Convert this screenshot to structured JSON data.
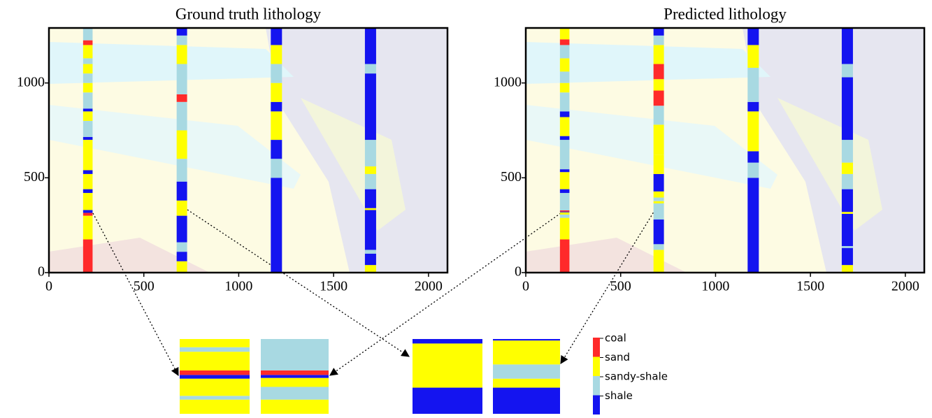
{
  "chart_data": [
    {
      "type": "wells",
      "title": "Ground truth lithology",
      "xlim": [
        0,
        2100
      ],
      "ylim": [
        0,
        1290
      ],
      "xticks": [
        0,
        500,
        1000,
        1500,
        2000
      ],
      "yticks": [
        0,
        500,
        1000
      ],
      "wells": [
        {
          "x": [
            180,
            230
          ],
          "segments": [
            [
              0,
              175,
              0
            ],
            [
              175,
              300,
              1
            ],
            [
              300,
              315,
              0
            ],
            [
              315,
              330,
              3
            ],
            [
              330,
              420,
              1
            ],
            [
              420,
              440,
              3
            ],
            [
              440,
              520,
              1
            ],
            [
              520,
              540,
              3
            ],
            [
              540,
              700,
              1
            ],
            [
              700,
              715,
              3
            ],
            [
              715,
              800,
              2
            ],
            [
              800,
              850,
              1
            ],
            [
              850,
              865,
              3
            ],
            [
              865,
              950,
              2
            ],
            [
              950,
              1000,
              1
            ],
            [
              1000,
              1050,
              2
            ],
            [
              1050,
              1100,
              1
            ],
            [
              1100,
              1130,
              2
            ],
            [
              1130,
              1200,
              1
            ],
            [
              1200,
              1225,
              0
            ],
            [
              1225,
              1290,
              2
            ]
          ]
        },
        {
          "x": [
            673,
            728
          ],
          "segments": [
            [
              0,
              60,
              1
            ],
            [
              60,
              110,
              3
            ],
            [
              110,
              160,
              2
            ],
            [
              160,
              300,
              3
            ],
            [
              300,
              380,
              1
            ],
            [
              380,
              480,
              3
            ],
            [
              480,
              600,
              2
            ],
            [
              600,
              750,
              1
            ],
            [
              750,
              900,
              2
            ],
            [
              900,
              940,
              0
            ],
            [
              940,
              1100,
              2
            ],
            [
              1100,
              1200,
              1
            ],
            [
              1200,
              1250,
              2
            ],
            [
              1250,
              1290,
              3
            ]
          ]
        },
        {
          "x": [
            1169,
            1228
          ],
          "segments": [
            [
              0,
              500,
              3
            ],
            [
              500,
              600,
              2
            ],
            [
              600,
              700,
              3
            ],
            [
              700,
              850,
              1
            ],
            [
              850,
              900,
              3
            ],
            [
              900,
              1000,
              1
            ],
            [
              1000,
              1100,
              2
            ],
            [
              1100,
              1200,
              1
            ],
            [
              1200,
              1290,
              3
            ]
          ]
        },
        {
          "x": [
            1665,
            1724
          ],
          "segments": [
            [
              0,
              40,
              1
            ],
            [
              40,
              100,
              3
            ],
            [
              100,
              120,
              2
            ],
            [
              120,
              330,
              3
            ],
            [
              330,
              340,
              1
            ],
            [
              340,
              440,
              3
            ],
            [
              440,
              520,
              2
            ],
            [
              520,
              560,
              1
            ],
            [
              560,
              700,
              2
            ],
            [
              700,
              1050,
              3
            ],
            [
              1050,
              1100,
              2
            ],
            [
              1100,
              1290,
              3
            ]
          ]
        }
      ]
    },
    {
      "type": "wells",
      "title": "Predicted lithology",
      "xlim": [
        0,
        2100
      ],
      "ylim": [
        0,
        1290
      ],
      "xticks": [
        0,
        500,
        1000,
        1500,
        2000
      ],
      "yticks": [
        0,
        500,
        1000
      ],
      "wells": [
        {
          "x": [
            180,
            230
          ],
          "segments": [
            [
              0,
              175,
              0
            ],
            [
              175,
              289,
              1
            ],
            [
              289,
              306,
              2
            ],
            [
              306,
              318,
              1
            ],
            [
              318,
              322,
              3
            ],
            [
              322,
              328,
              0
            ],
            [
              328,
              420,
              2
            ],
            [
              420,
              440,
              3
            ],
            [
              440,
              530,
              1
            ],
            [
              530,
              545,
              3
            ],
            [
              545,
              700,
              2
            ],
            [
              700,
              720,
              3
            ],
            [
              720,
              820,
              1
            ],
            [
              820,
              850,
              3
            ],
            [
              850,
              950,
              2
            ],
            [
              950,
              1000,
              1
            ],
            [
              1000,
              1060,
              2
            ],
            [
              1060,
              1130,
              1
            ],
            [
              1130,
              1200,
              2
            ],
            [
              1200,
              1230,
              0
            ],
            [
              1230,
              1290,
              1
            ]
          ]
        },
        {
          "x": [
            673,
            728
          ],
          "segments": [
            [
              0,
              120,
              1
            ],
            [
              120,
              150,
              2
            ],
            [
              150,
              280,
              3
            ],
            [
              280,
              365,
              2
            ],
            [
              365,
              377,
              1
            ],
            [
              377,
              396,
              2
            ],
            [
              396,
              428,
              1
            ],
            [
              428,
              520,
              3
            ],
            [
              520,
              620,
              1
            ],
            [
              620,
              780,
              1
            ],
            [
              780,
              880,
              2
            ],
            [
              880,
              960,
              0
            ],
            [
              960,
              1020,
              1
            ],
            [
              1020,
              1100,
              0
            ],
            [
              1100,
              1200,
              1
            ],
            [
              1200,
              1250,
              2
            ],
            [
              1250,
              1290,
              3
            ]
          ]
        },
        {
          "x": [
            1169,
            1228
          ],
          "segments": [
            [
              0,
              500,
              3
            ],
            [
              500,
              580,
              2
            ],
            [
              580,
              640,
              3
            ],
            [
              640,
              850,
              1
            ],
            [
              850,
              900,
              3
            ],
            [
              900,
              1080,
              2
            ],
            [
              1080,
              1200,
              1
            ],
            [
              1200,
              1290,
              3
            ]
          ]
        },
        {
          "x": [
            1665,
            1724
          ],
          "segments": [
            [
              0,
              40,
              1
            ],
            [
              40,
              130,
              3
            ],
            [
              130,
              140,
              2
            ],
            [
              140,
              310,
              3
            ],
            [
              310,
              320,
              1
            ],
            [
              320,
              440,
              3
            ],
            [
              440,
              520,
              2
            ],
            [
              520,
              580,
              1
            ],
            [
              580,
              700,
              2
            ],
            [
              700,
              1030,
              3
            ],
            [
              1030,
              1100,
              2
            ],
            [
              1100,
              1290,
              3
            ]
          ]
        }
      ]
    }
  ],
  "zooms": [
    {
      "ylim": [
        270,
        370
      ],
      "segments": [
        [
          270,
          289,
          1
        ],
        [
          289,
          294,
          2
        ],
        [
          294,
          317,
          1
        ],
        [
          317,
          322,
          3
        ],
        [
          322,
          328,
          0
        ],
        [
          328,
          353,
          1
        ],
        [
          353,
          359,
          2
        ],
        [
          359,
          370,
          1
        ]
      ]
    },
    {
      "ylim": [
        270,
        370
      ],
      "segments": [
        [
          270,
          289,
          1
        ],
        [
          289,
          306,
          2
        ],
        [
          306,
          318,
          1
        ],
        [
          318,
          322,
          3
        ],
        [
          322,
          328,
          0
        ],
        [
          328,
          370,
          2
        ]
      ]
    },
    {
      "ylim": [
        330,
        430
      ],
      "segments": [
        [
          330,
          365,
          3
        ],
        [
          365,
          424,
          1
        ],
        [
          424,
          430,
          3
        ]
      ]
    },
    {
      "ylim": [
        330,
        430
      ],
      "segments": [
        [
          330,
          365,
          3
        ],
        [
          365,
          377,
          1
        ],
        [
          377,
          396,
          2
        ],
        [
          396,
          428,
          1
        ],
        [
          428,
          430,
          3
        ]
      ]
    }
  ],
  "legend": [
    {
      "name": "coal",
      "color": "#ff2a2a"
    },
    {
      "name": "sand",
      "color": "#ffff00"
    },
    {
      "name": "sandy-shale",
      "color": "#a8d9e2"
    },
    {
      "name": "shale",
      "color": "#1414f0"
    }
  ]
}
